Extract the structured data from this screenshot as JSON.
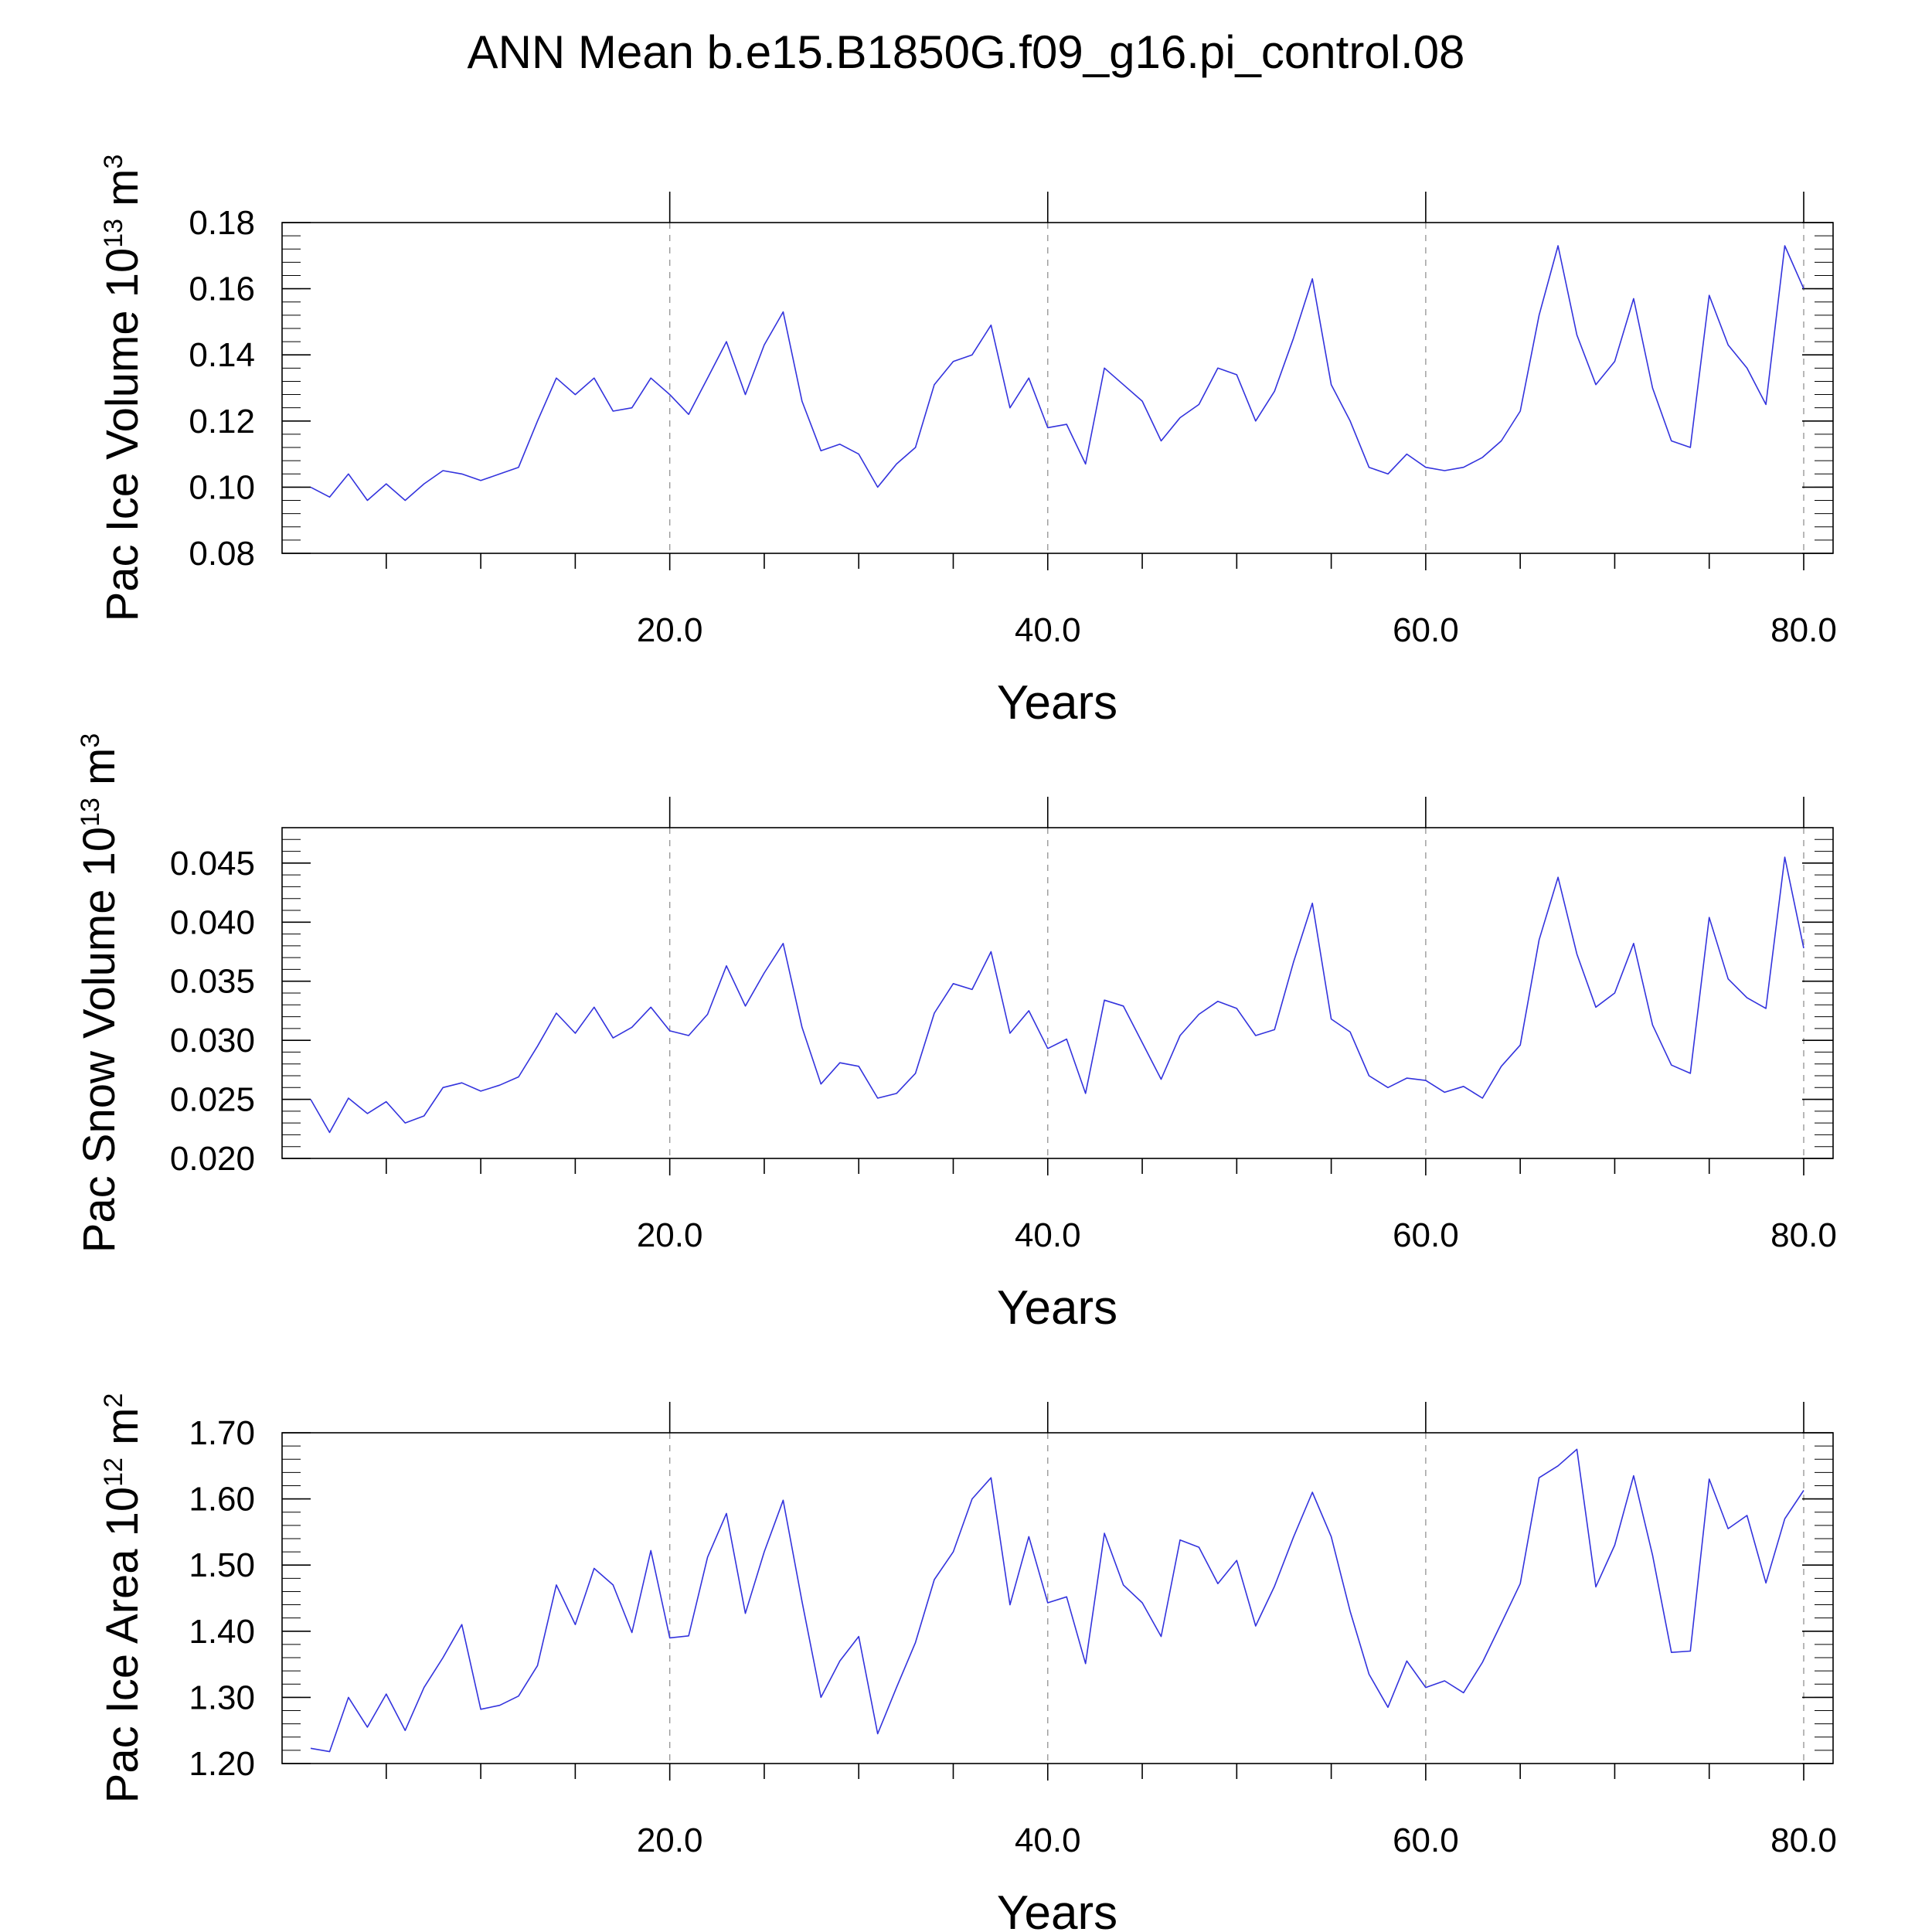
{
  "title": "ANN Mean b.e15.B1850G.f09_g16.pi_control.08",
  "colors": {
    "series": "#3333dd",
    "axes": "#000000",
    "grid": "#9a9a9a"
  },
  "chart_data": [
    {
      "type": "line",
      "xlabel": "Years",
      "ylabel": {
        "text": "Pac Ice Volume 10",
        "exp": "13",
        "unit": " m",
        "unit_exp": "3"
      },
      "xlim": [
        1,
        80
      ],
      "ylim": [
        0.08,
        0.18
      ],
      "xticks": [
        20,
        40,
        60,
        80
      ],
      "xtick_labels": [
        "20.0",
        "40.0",
        "60.0",
        "80.0"
      ],
      "yticks": [
        0.08,
        0.1,
        0.12,
        0.14,
        0.16,
        0.18
      ],
      "ytick_labels": [
        "0.08",
        "0.10",
        "0.12",
        "0.14",
        "0.16",
        "0.18"
      ],
      "grid": "dashed vertical lines at major x ticks",
      "x": [
        1,
        2,
        3,
        4,
        5,
        6,
        7,
        8,
        9,
        10,
        11,
        12,
        13,
        14,
        15,
        16,
        17,
        18,
        19,
        20,
        21,
        22,
        23,
        24,
        25,
        26,
        27,
        28,
        29,
        30,
        31,
        32,
        33,
        34,
        35,
        36,
        37,
        38,
        39,
        40,
        41,
        42,
        43,
        44,
        45,
        46,
        47,
        48,
        49,
        50,
        51,
        52,
        53,
        54,
        55,
        56,
        57,
        58,
        59,
        60,
        61,
        62,
        63,
        64,
        65,
        66,
        67,
        68,
        69,
        70,
        71,
        72,
        73,
        74,
        75,
        76,
        77,
        78,
        79,
        80
      ],
      "y": [
        0.1,
        0.097,
        0.104,
        0.096,
        0.101,
        0.096,
        0.101,
        0.105,
        0.104,
        0.102,
        0.104,
        0.106,
        0.12,
        0.133,
        0.128,
        0.133,
        0.123,
        0.124,
        0.133,
        0.128,
        0.122,
        0.133,
        0.144,
        0.128,
        0.143,
        0.153,
        0.126,
        0.111,
        0.113,
        0.11,
        0.1,
        0.107,
        0.112,
        0.131,
        0.138,
        0.14,
        0.149,
        0.124,
        0.133,
        0.118,
        0.119,
        0.107,
        0.136,
        0.131,
        0.126,
        0.114,
        0.121,
        0.125,
        0.136,
        0.134,
        0.12,
        0.129,
        0.145,
        0.163,
        0.131,
        0.12,
        0.106,
        0.104,
        0.11,
        0.106,
        0.105,
        0.106,
        0.109,
        0.114,
        0.123,
        0.152,
        0.173,
        0.146,
        0.131,
        0.138,
        0.157,
        0.13,
        0.114,
        0.112,
        0.158,
        0.143,
        0.136,
        0.125,
        0.173,
        0.16
      ]
    },
    {
      "type": "line",
      "xlabel": "Years",
      "ylabel": {
        "text": "Pac Snow Volume 10",
        "exp": "13",
        "unit": " m",
        "unit_exp": "3"
      },
      "xlim": [
        1,
        80
      ],
      "ylim": [
        0.02,
        0.048
      ],
      "xticks": [
        20,
        40,
        60,
        80
      ],
      "xtick_labels": [
        "20.0",
        "40.0",
        "60.0",
        "80.0"
      ],
      "yticks": [
        0.02,
        0.025,
        0.03,
        0.035,
        0.04,
        0.045
      ],
      "ytick_labels": [
        "0.020",
        "0.025",
        "0.030",
        "0.035",
        "0.040",
        "0.045"
      ],
      "grid": "dashed vertical lines at major x ticks",
      "x": [
        1,
        2,
        3,
        4,
        5,
        6,
        7,
        8,
        9,
        10,
        11,
        12,
        13,
        14,
        15,
        16,
        17,
        18,
        19,
        20,
        21,
        22,
        23,
        24,
        25,
        26,
        27,
        28,
        29,
        30,
        31,
        32,
        33,
        34,
        35,
        36,
        37,
        38,
        39,
        40,
        41,
        42,
        43,
        44,
        45,
        46,
        47,
        48,
        49,
        50,
        51,
        52,
        53,
        54,
        55,
        56,
        57,
        58,
        59,
        60,
        61,
        62,
        63,
        64,
        65,
        66,
        67,
        68,
        69,
        70,
        71,
        72,
        73,
        74,
        75,
        76,
        77,
        78,
        79,
        80
      ],
      "y": [
        0.025,
        0.0222,
        0.0251,
        0.0238,
        0.0248,
        0.023,
        0.0236,
        0.026,
        0.0264,
        0.0257,
        0.0262,
        0.0269,
        0.0295,
        0.0323,
        0.0306,
        0.0328,
        0.0302,
        0.0311,
        0.0328,
        0.0308,
        0.0304,
        0.0322,
        0.0363,
        0.0329,
        0.0357,
        0.0382,
        0.0311,
        0.0263,
        0.0281,
        0.0278,
        0.0251,
        0.0255,
        0.0272,
        0.0323,
        0.0348,
        0.0343,
        0.0375,
        0.0306,
        0.0325,
        0.0293,
        0.0301,
        0.0255,
        0.0334,
        0.0329,
        0.0298,
        0.0267,
        0.0304,
        0.0322,
        0.0333,
        0.0327,
        0.0304,
        0.0309,
        0.0366,
        0.0416,
        0.0318,
        0.0307,
        0.027,
        0.026,
        0.0268,
        0.0266,
        0.0256,
        0.0261,
        0.0251,
        0.0278,
        0.0296,
        0.0385,
        0.0438,
        0.0373,
        0.0328,
        0.034,
        0.0382,
        0.0313,
        0.0279,
        0.0272,
        0.0404,
        0.0352,
        0.0336,
        0.0327,
        0.0455,
        0.0378
      ]
    },
    {
      "type": "line",
      "xlabel": "Years",
      "ylabel": {
        "text": "Pac Ice Area 10",
        "exp": "12",
        "unit": " m",
        "unit_exp": "2"
      },
      "xlim": [
        1,
        80
      ],
      "ylim": [
        1.2,
        1.7
      ],
      "xticks": [
        20,
        40,
        60,
        80
      ],
      "xtick_labels": [
        "20.0",
        "40.0",
        "60.0",
        "80.0"
      ],
      "yticks": [
        1.2,
        1.3,
        1.4,
        1.5,
        1.6,
        1.7
      ],
      "ytick_labels": [
        "1.20",
        "1.30",
        "1.40",
        "1.50",
        "1.60",
        "1.70"
      ],
      "grid": "dashed vertical lines at major x ticks",
      "x": [
        1,
        2,
        3,
        4,
        5,
        6,
        7,
        8,
        9,
        10,
        11,
        12,
        13,
        14,
        15,
        16,
        17,
        18,
        19,
        20,
        21,
        22,
        23,
        24,
        25,
        26,
        27,
        28,
        29,
        30,
        31,
        32,
        33,
        34,
        35,
        36,
        37,
        38,
        39,
        40,
        41,
        42,
        43,
        44,
        45,
        46,
        47,
        48,
        49,
        50,
        51,
        52,
        53,
        54,
        55,
        56,
        57,
        58,
        59,
        60,
        61,
        62,
        63,
        64,
        65,
        66,
        67,
        68,
        69,
        70,
        71,
        72,
        73,
        74,
        75,
        76,
        77,
        78,
        79,
        80
      ],
      "y": [
        1.223,
        1.218,
        1.3,
        1.255,
        1.305,
        1.25,
        1.315,
        1.36,
        1.41,
        1.282,
        1.288,
        1.302,
        1.348,
        1.47,
        1.41,
        1.495,
        1.47,
        1.398,
        1.522,
        1.39,
        1.393,
        1.512,
        1.578,
        1.427,
        1.52,
        1.598,
        1.445,
        1.3,
        1.355,
        1.392,
        1.245,
        1.315,
        1.383,
        1.478,
        1.52,
        1.6,
        1.632,
        1.44,
        1.543,
        1.443,
        1.452,
        1.351,
        1.548,
        1.47,
        1.443,
        1.392,
        1.538,
        1.527,
        1.472,
        1.507,
        1.408,
        1.468,
        1.542,
        1.61,
        1.543,
        1.43,
        1.335,
        1.285,
        1.355,
        1.315,
        1.325,
        1.307,
        1.353,
        1.412,
        1.472,
        1.632,
        1.65,
        1.675,
        1.467,
        1.53,
        1.635,
        1.515,
        1.368,
        1.37,
        1.63,
        1.555,
        1.575,
        1.473,
        1.57,
        1.613
      ]
    }
  ]
}
